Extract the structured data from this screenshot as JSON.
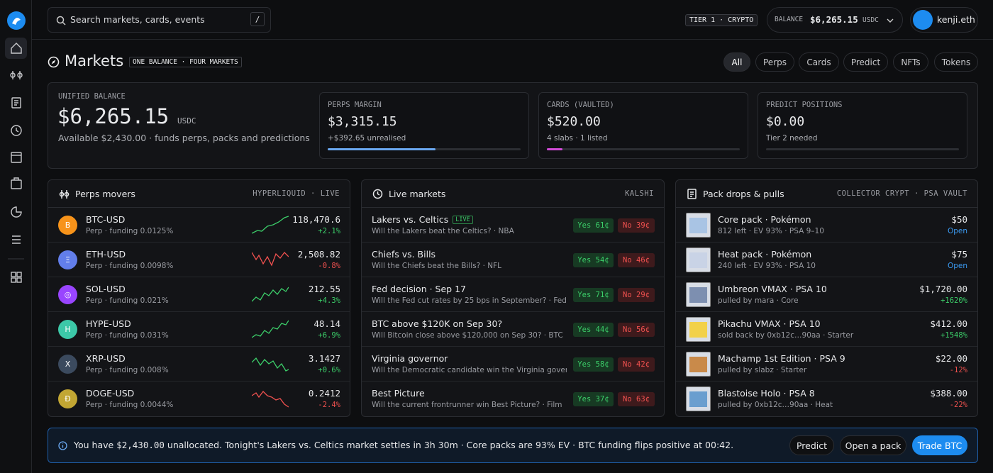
{
  "search": {
    "placeholder": "Search markets, cards, events",
    "shortcut": "/"
  },
  "header": {
    "tier": "TIER 1 · CRYPTO",
    "balance_label": "BALANCE",
    "balance": "$6,265.15",
    "currency": "USDC",
    "user": "kenji.eth"
  },
  "page": {
    "title": "Markets",
    "badge": "ONE BALANCE · FOUR MARKETS",
    "tabs": [
      "All",
      "Perps",
      "Cards",
      "Predict",
      "NFTs",
      "Tokens"
    ]
  },
  "summary": {
    "label": "UNIFIED BALANCE",
    "amount": "$6,265.15",
    "currency": "USDC",
    "note": "Available $2,430.00 · funds perps, packs and predictions",
    "cards": [
      {
        "label": "PERPS MARGIN",
        "value": "$3,315.15",
        "note": "+$392.65 unrealised"
      },
      {
        "label": "CARDS (VAULTED)",
        "value": "$520.00",
        "note": "4 slabs · 1 listed"
      },
      {
        "label": "PREDICT POSITIONS",
        "value": "$0.00",
        "note": "Tier 2 needed"
      }
    ]
  },
  "perps": {
    "title": "Perps movers",
    "source": "HYPERLIQUID · LIVE",
    "rows": [
      {
        "icon": "B",
        "symbol": "BTC-USD",
        "detail": "Perp · funding 0.0125%",
        "price": "118,470.6",
        "change": "+2.1%"
      },
      {
        "icon": "Ξ",
        "symbol": "ETH-USD",
        "detail": "Perp · funding 0.0098%",
        "price": "2,508.82",
        "change": "-0.8%"
      },
      {
        "icon": "◎",
        "symbol": "SOL-USD",
        "detail": "Perp · funding 0.021%",
        "price": "212.55",
        "change": "+4.3%"
      },
      {
        "icon": "H",
        "symbol": "HYPE-USD",
        "detail": "Perp · funding 0.031%",
        "price": "48.14",
        "change": "+6.9%"
      },
      {
        "icon": "X",
        "symbol": "XRP-USD",
        "detail": "Perp · funding 0.008%",
        "price": "3.1427",
        "change": "+0.6%"
      },
      {
        "icon": "Ð",
        "symbol": "DOGE-USD",
        "detail": "Perp · funding 0.0044%",
        "price": "0.2412",
        "change": "-2.4%"
      }
    ]
  },
  "live": {
    "title": "Live markets",
    "source": "KALSHI",
    "rows": [
      {
        "title": "Lakers vs. Celtics",
        "badge": "LIVE",
        "question": "Will the Lakers beat the Celtics? · NBA",
        "yes": "Yes 61¢",
        "no": "No 39¢"
      },
      {
        "title": "Chiefs vs. Bills",
        "question": "Will the Chiefs beat the Bills? · NFL",
        "yes": "Yes 54¢",
        "no": "No 46¢"
      },
      {
        "title": "Fed decision · Sep 17",
        "question": "Will the Fed cut rates by 25 bps in September? · Fed",
        "yes": "Yes 71¢",
        "no": "No 29¢"
      },
      {
        "title": "BTC above $120K on Sep 30?",
        "question": "Will Bitcoin close above $120,000 on Sep 30? · BTC",
        "yes": "Yes 44¢",
        "no": "No 56¢"
      },
      {
        "title": "Virginia governor",
        "question": "Will the Democratic candidate win the Virginia governor…",
        "yes": "Yes 58¢",
        "no": "No 42¢"
      },
      {
        "title": "Best Picture",
        "question": "Will the current frontrunner win Best Picture? · Film",
        "yes": "Yes 37¢",
        "no": "No 63¢"
      }
    ]
  },
  "packs": {
    "title": "Pack drops & pulls",
    "source": "COLLECTOR CRYPT · PSA VAULT",
    "rows": [
      {
        "name": "Core pack · Pokémon",
        "detail": "812 left · EV 93% · PSA 9–10",
        "price": "$50",
        "status": "Open"
      },
      {
        "name": "Heat pack · Pokémon",
        "detail": "240 left · EV 93% · PSA 10",
        "price": "$75",
        "status": "Open"
      },
      {
        "name": "Umbreon VMAX · PSA 10",
        "detail": "pulled by mara · Core",
        "price": "$1,720.00",
        "change": "+1620%"
      },
      {
        "name": "Pikachu VMAX · PSA 10",
        "detail": "sold back by 0xb12c…90aa · Starter",
        "price": "$412.00",
        "change": "+1548%"
      },
      {
        "name": "Machamp 1st Edition · PSA 9",
        "detail": "pulled by slabz · Starter",
        "price": "$22.00",
        "change": "-12%"
      },
      {
        "name": "Blastoise Holo · PSA 8",
        "detail": "pulled by 0xb12c…90aa · Heat",
        "price": "$388.00",
        "change": "-22%"
      }
    ]
  },
  "banner": {
    "text_before": "You have",
    "amount": "$2,430.00",
    "text_after": "unallocated. Tonight's Lakers vs. Celtics market settles in 3h 30m · Core packs are 93% EV · BTC funding flips positive at 00:42.",
    "buttons": [
      "Predict",
      "Open a pack",
      "Trade BTC"
    ]
  }
}
